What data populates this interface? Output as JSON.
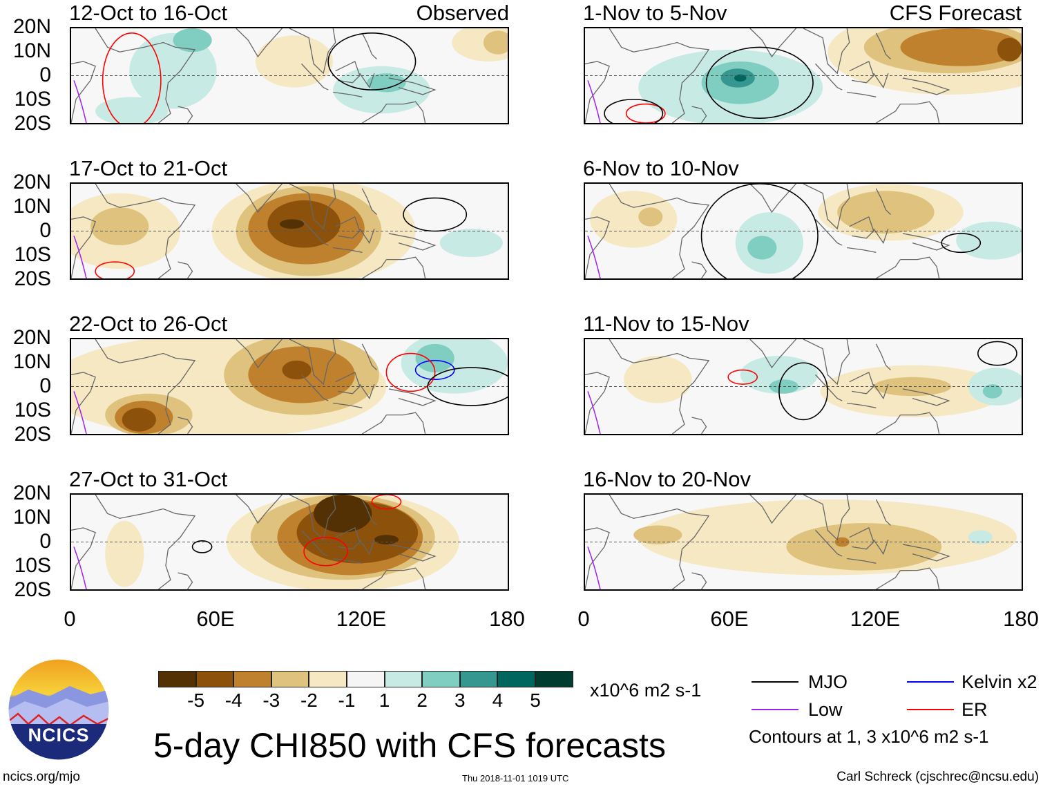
{
  "header": {
    "observed_label": "Observed",
    "forecast_label": "CFS Forecast"
  },
  "panels": {
    "left": [
      "12-Oct to 16-Oct",
      "17-Oct to 21-Oct",
      "22-Oct to 26-Oct",
      "27-Oct to 31-Oct"
    ],
    "right": [
      "1-Nov to 5-Nov",
      "6-Nov to 10-Nov",
      "11-Nov to 15-Nov",
      "16-Nov to 20-Nov"
    ]
  },
  "axes": {
    "lat_ticks": [
      "20N",
      "10N",
      "0",
      "10S",
      "20S"
    ],
    "lon_ticks": [
      "0",
      "60E",
      "120E",
      "180"
    ]
  },
  "colorbar": {
    "colors": [
      "#543005",
      "#8c510a",
      "#bf812d",
      "#dfc27d",
      "#f6e8c3",
      "#f5f5f5",
      "#c7eae5",
      "#80cdc1",
      "#35978f",
      "#01665e",
      "#003c30"
    ],
    "labels": [
      "-5",
      "-4",
      "-3",
      "-2",
      "-1",
      "1",
      "2",
      "3",
      "4",
      "5"
    ],
    "units": "x10^6 m2 s-1"
  },
  "title": "5-day CHI850 with CFS forecasts",
  "legend": {
    "items": [
      {
        "label": "MJO",
        "color": "#000000"
      },
      {
        "label": "Kelvin x2",
        "color": "#0000ff"
      },
      {
        "label": "Low",
        "color": "#a020f0"
      },
      {
        "label": "ER",
        "color": "#ff0000"
      }
    ],
    "note": "Contours at 1, 3 x10^6 m2 s-1"
  },
  "logo": {
    "text": "NCICS"
  },
  "footer": {
    "url": "ncics.org/mjo",
    "timestamp": "Thu 2018-11-01 1019 UTC",
    "credit": "Carl Schreck (cjschrec@ncsu.edu)"
  }
}
